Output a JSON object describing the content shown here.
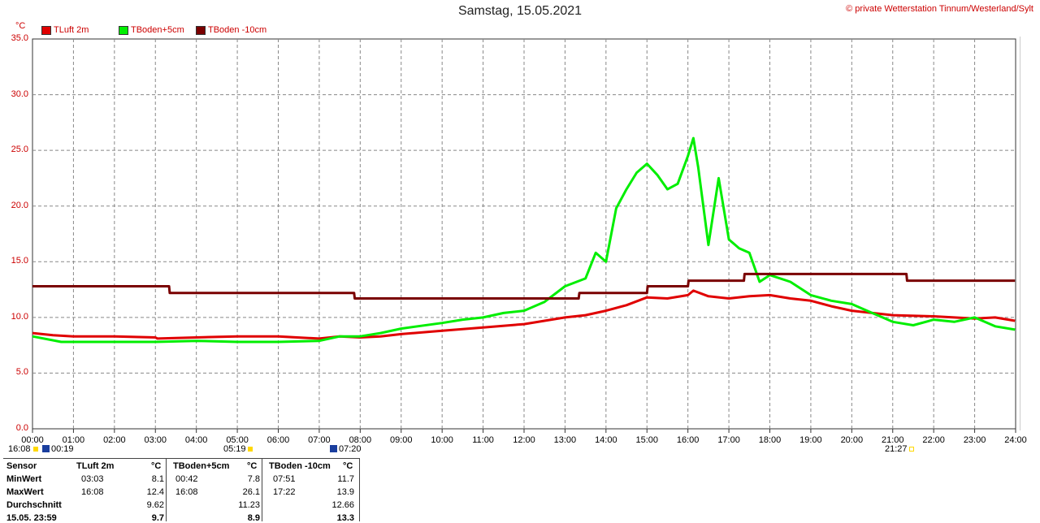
{
  "title": "Samstag, 15.05.2021",
  "copyright": "© private Wetterstation Tinnum/Westerland/Sylt",
  "unit": "°C",
  "colors": {
    "tluft": "#e00000",
    "tboden5": "#00ee00",
    "tboden10": "#7a0000",
    "grid": "#888888"
  },
  "legend": [
    {
      "label": "TLuft 2m",
      "color": "#e00000"
    },
    {
      "label": "TBoden+5cm",
      "color": "#00ee00"
    },
    {
      "label": "TBoden -10cm",
      "color": "#7a0000"
    }
  ],
  "chart_data": {
    "type": "line",
    "title": "Samstag, 15.05.2021",
    "ylabel": "°C",
    "ylim": [
      0,
      35
    ],
    "xlim": [
      "00:00",
      "24:00"
    ],
    "grid": true,
    "legend_position": "top-left",
    "yticks": [
      "0.0",
      "5.0",
      "10.0",
      "15.0",
      "20.0",
      "25.0",
      "30.0",
      "35.0"
    ],
    "xticks": [
      "00:00",
      "01:00",
      "02:00",
      "03:00",
      "04:00",
      "05:00",
      "06:00",
      "07:00",
      "08:00",
      "09:00",
      "10:00",
      "11:00",
      "12:00",
      "13:00",
      "14:00",
      "15:00",
      "16:00",
      "17:00",
      "18:00",
      "19:00",
      "20:00",
      "21:00",
      "22:00",
      "23:00",
      "24:00"
    ],
    "series": [
      {
        "name": "TLuft 2m",
        "color": "#e00000",
        "x": [
          "00:00",
          "00:30",
          "01:00",
          "02:00",
          "03:00",
          "03:03",
          "04:00",
          "05:00",
          "06:00",
          "07:00",
          "07:30",
          "08:00",
          "08:30",
          "09:00",
          "10:00",
          "11:00",
          "12:00",
          "12:30",
          "13:00",
          "13:30",
          "14:00",
          "14:30",
          "15:00",
          "15:30",
          "16:00",
          "16:08",
          "16:30",
          "17:00",
          "17:30",
          "18:00",
          "18:30",
          "19:00",
          "19:30",
          "20:00",
          "21:00",
          "22:00",
          "23:00",
          "23:30",
          "23:59"
        ],
        "values": [
          8.6,
          8.4,
          8.3,
          8.3,
          8.2,
          8.1,
          8.2,
          8.3,
          8.3,
          8.1,
          8.3,
          8.2,
          8.3,
          8.5,
          8.8,
          9.1,
          9.4,
          9.7,
          10.0,
          10.2,
          10.6,
          11.1,
          11.8,
          11.7,
          12.0,
          12.4,
          11.9,
          11.7,
          11.9,
          12.0,
          11.7,
          11.5,
          11.0,
          10.6,
          10.2,
          10.1,
          9.9,
          10.0,
          9.7
        ]
      },
      {
        "name": "TBoden+5cm",
        "color": "#00ee00",
        "x": [
          "00:00",
          "00:42",
          "01:00",
          "02:00",
          "03:00",
          "04:00",
          "05:00",
          "06:00",
          "07:00",
          "07:30",
          "08:00",
          "08:30",
          "09:00",
          "10:00",
          "10:30",
          "11:00",
          "11:30",
          "12:00",
          "12:30",
          "13:00",
          "13:30",
          "13:45",
          "14:00",
          "14:15",
          "14:30",
          "14:45",
          "15:00",
          "15:15",
          "15:30",
          "15:45",
          "16:00",
          "16:08",
          "16:15",
          "16:30",
          "16:45",
          "17:00",
          "17:15",
          "17:30",
          "17:45",
          "18:00",
          "18:30",
          "19:00",
          "19:30",
          "20:00",
          "20:30",
          "21:00",
          "21:30",
          "22:00",
          "22:30",
          "23:00",
          "23:30",
          "23:59"
        ],
        "values": [
          8.3,
          7.8,
          7.8,
          7.8,
          7.8,
          7.9,
          7.8,
          7.8,
          7.9,
          8.3,
          8.3,
          8.6,
          9.0,
          9.5,
          9.8,
          10.0,
          10.4,
          10.6,
          11.4,
          12.8,
          13.5,
          15.8,
          15.0,
          19.8,
          21.5,
          23.0,
          23.8,
          22.8,
          21.5,
          22.0,
          24.5,
          26.1,
          23.5,
          16.5,
          22.5,
          17.0,
          16.2,
          15.8,
          13.2,
          13.8,
          13.2,
          12.0,
          11.5,
          11.2,
          10.4,
          9.6,
          9.3,
          9.8,
          9.6,
          10.0,
          9.2,
          8.9
        ]
      },
      {
        "name": "TBoden -10cm",
        "color": "#7a0000",
        "x": [
          "00:00",
          "03:20",
          "03:21",
          "07:51",
          "07:52",
          "13:20",
          "13:21",
          "15:00",
          "15:01",
          "16:00",
          "16:01",
          "17:22",
          "17:23",
          "21:20",
          "21:21",
          "23:59"
        ],
        "values": [
          12.8,
          12.8,
          12.2,
          12.2,
          11.7,
          11.7,
          12.2,
          12.2,
          12.8,
          12.8,
          13.3,
          13.3,
          13.9,
          13.9,
          13.3,
          13.3
        ]
      }
    ]
  },
  "markers": {
    "sunrise_moon": [
      "16:08",
      "00:19"
    ],
    "sunrise": "05:19",
    "moonrise": "07:20",
    "sunset": "21:27"
  },
  "stats": {
    "headers": [
      "Sensor",
      "TLuft 2m",
      "°C",
      "TBoden+5cm",
      "°C",
      "TBoden -10cm",
      "°C"
    ],
    "rows": [
      {
        "label": "MinWert",
        "t1": "03:03",
        "v1": "8.1",
        "t2": "00:42",
        "v2": "7.8",
        "t3": "07:51",
        "v3": "11.7"
      },
      {
        "label": "MaxWert",
        "t1": "16:08",
        "v1": "12.4",
        "t2": "16:08",
        "v2": "26.1",
        "t3": "17:22",
        "v3": "13.9"
      },
      {
        "label": "Durchschnitt",
        "t1": "",
        "v1": "9.62",
        "t2": "",
        "v2": "11.23",
        "t3": "",
        "v3": "12.66"
      },
      {
        "label": "15.05. 23:59",
        "t1": "",
        "v1": "9.7",
        "t2": "",
        "v2": "8.9",
        "t3": "",
        "v3": "13.3"
      }
    ]
  }
}
